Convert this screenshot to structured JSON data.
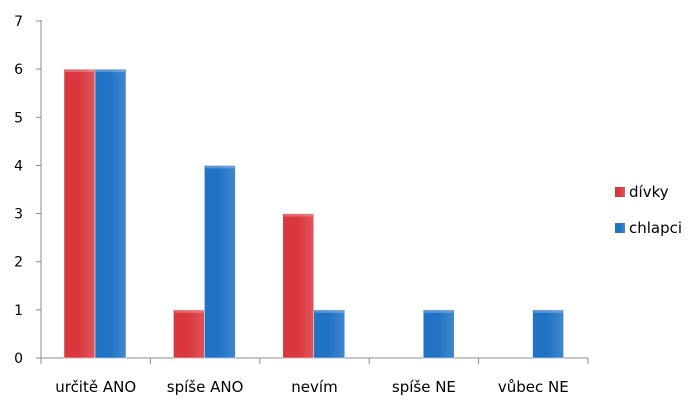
{
  "chart_data": {
    "type": "bar",
    "title": "",
    "xlabel": "",
    "ylabel": "",
    "categories": [
      "určitě ANO",
      "spíše ANO",
      "nevím",
      "spíše NE",
      "vůbec NE"
    ],
    "series": [
      {
        "name": "dívky",
        "values": [
          6,
          1,
          3,
          0,
          0
        ],
        "color": "#d9363e"
      },
      {
        "name": "chlapci",
        "values": [
          6,
          4,
          1,
          1,
          1
        ],
        "color": "#1f72c4"
      }
    ],
    "ylim": [
      0,
      7
    ],
    "yticks": [
      0,
      1,
      2,
      3,
      4,
      5,
      6,
      7
    ],
    "grid": false,
    "legend_position": "right"
  }
}
